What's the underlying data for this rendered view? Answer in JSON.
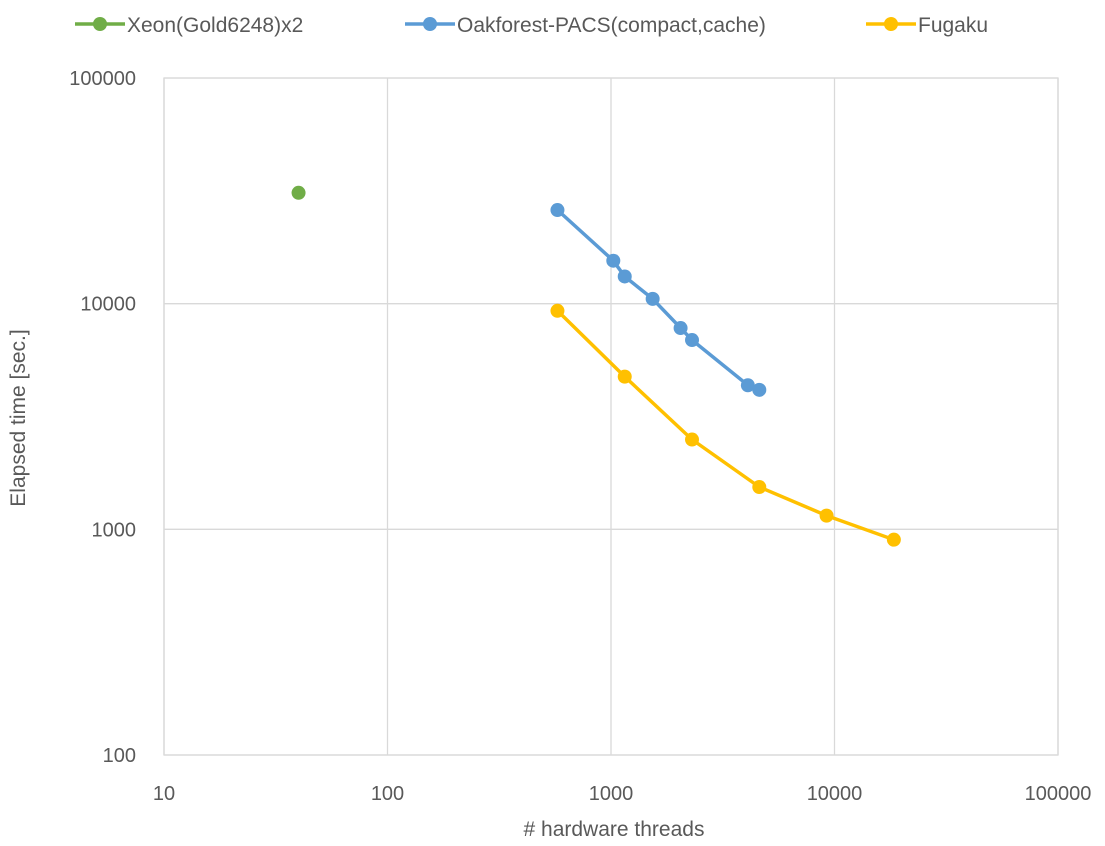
{
  "chart_data": {
    "type": "line",
    "xscale": "log",
    "yscale": "log",
    "xlim": [
      10,
      100000
    ],
    "ylim": [
      100,
      100000
    ],
    "xlabel": "# hardware threads",
    "ylabel": "Elapsed time [sec.]",
    "xticks": [
      "10",
      "100",
      "1000",
      "10000",
      "100000"
    ],
    "yticks": [
      "100",
      "1000",
      "10000",
      "100000"
    ],
    "grid": true,
    "legend_position": "top",
    "series": [
      {
        "name": "Xeon(Gold6248)x2",
        "color": "#70ad47",
        "x": [
          40
        ],
        "y": [
          31000
        ]
      },
      {
        "name": "Oakforest-PACS(compact,cache)",
        "color": "#5b9bd5",
        "x": [
          576,
          1024,
          1152,
          1536,
          2048,
          2304,
          4096,
          4608
        ],
        "y": [
          26000,
          15500,
          13200,
          10500,
          7800,
          6900,
          4350,
          4150
        ]
      },
      {
        "name": "Fugaku",
        "color": "#ffc000",
        "x": [
          576,
          1152,
          2304,
          4608,
          9216,
          18432
        ],
        "y": [
          9300,
          4750,
          2500,
          1540,
          1150,
          900
        ]
      }
    ]
  }
}
